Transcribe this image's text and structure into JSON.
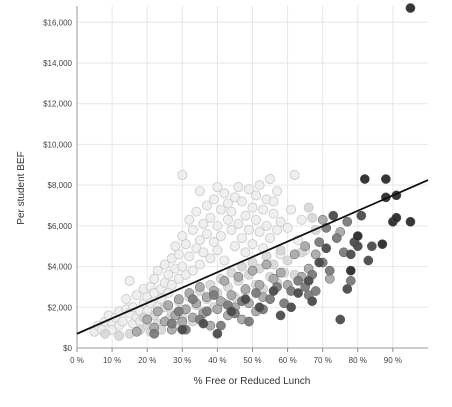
{
  "chart_data": {
    "type": "scatter",
    "xlabel": "% Free or Reduced Lunch",
    "ylabel": "Per student BEF",
    "xlim": [
      0,
      100
    ],
    "ylim": [
      0,
      16800
    ],
    "x_ticks": [
      {
        "value": 0,
        "label": "0 %"
      },
      {
        "value": 10,
        "label": "10 %"
      },
      {
        "value": 20,
        "label": "20 %"
      },
      {
        "value": 30,
        "label": "30 %"
      },
      {
        "value": 40,
        "label": "40 %"
      },
      {
        "value": 50,
        "label": "50 %"
      },
      {
        "value": 60,
        "label": "60 %"
      },
      {
        "value": 70,
        "label": "70 %"
      },
      {
        "value": 80,
        "label": "80 %"
      },
      {
        "value": 90,
        "label": "90 %"
      }
    ],
    "y_ticks": [
      {
        "value": 0,
        "label": "$0"
      },
      {
        "value": 2000,
        "label": "$2,000"
      },
      {
        "value": 4000,
        "label": "$4,000"
      },
      {
        "value": 6000,
        "label": "$6,000"
      },
      {
        "value": 8000,
        "label": "$8,000"
      },
      {
        "value": 10000,
        "label": "$10,000"
      },
      {
        "value": 12000,
        "label": "$12,000"
      },
      {
        "value": 14000,
        "label": "$14,000"
      },
      {
        "value": 16000,
        "label": "$16,000"
      }
    ],
    "grid": true,
    "legend": "none",
    "trendline": {
      "x": [
        0,
        100
      ],
      "y": [
        700,
        8250
      ],
      "color": "#111111"
    },
    "color_scale": [
      "#ececec",
      "#d4d4d4",
      "#a9a9a9",
      "#7a7a7a",
      "#4b4b4b",
      "#2b2b2b"
    ],
    "points": [
      [
        5,
        800,
        0
      ],
      [
        6,
        1100,
        0
      ],
      [
        7,
        900,
        0
      ],
      [
        8,
        1300,
        0
      ],
      [
        9,
        1600,
        0
      ],
      [
        10,
        1200,
        0
      ],
      [
        10,
        900,
        0
      ],
      [
        11,
        1500,
        0
      ],
      [
        12,
        1800,
        0
      ],
      [
        12,
        1100,
        0
      ],
      [
        13,
        1300,
        0
      ],
      [
        14,
        1900,
        0
      ],
      [
        14,
        2400,
        0
      ],
      [
        15,
        3300,
        0
      ],
      [
        15,
        1700,
        0
      ],
      [
        16,
        1200,
        0
      ],
      [
        16,
        2000,
        0
      ],
      [
        17,
        1500,
        0
      ],
      [
        17,
        2600,
        0
      ],
      [
        18,
        1800,
        0
      ],
      [
        18,
        1300,
        0
      ],
      [
        19,
        2200,
        0
      ],
      [
        19,
        2900,
        0
      ],
      [
        20,
        2500,
        0
      ],
      [
        20,
        1800,
        0
      ],
      [
        21,
        3000,
        0
      ],
      [
        21,
        2200,
        0
      ],
      [
        22,
        2700,
        0
      ],
      [
        22,
        3400,
        0
      ],
      [
        23,
        2000,
        0
      ],
      [
        23,
        3800,
        0
      ],
      [
        24,
        2900,
        0
      ],
      [
        24,
        2400,
        0
      ],
      [
        25,
        3200,
        0
      ],
      [
        25,
        4100,
        0
      ],
      [
        26,
        3600,
        0
      ],
      [
        26,
        2700,
        0
      ],
      [
        27,
        4400,
        0
      ],
      [
        27,
        3100,
        0
      ],
      [
        28,
        3900,
        0
      ],
      [
        28,
        5000,
        0
      ],
      [
        29,
        3400,
        0
      ],
      [
        29,
        4600,
        0
      ],
      [
        30,
        8500,
        0
      ],
      [
        30,
        5500,
        0
      ],
      [
        30,
        4000,
        0
      ],
      [
        31,
        3600,
        0
      ],
      [
        31,
        5100,
        0
      ],
      [
        32,
        6300,
        0
      ],
      [
        32,
        4500,
        0
      ],
      [
        33,
        5800,
        0
      ],
      [
        33,
        3800,
        0
      ],
      [
        34,
        4900,
        0
      ],
      [
        34,
        6700,
        0
      ],
      [
        35,
        5300,
        0
      ],
      [
        35,
        4100,
        0
      ],
      [
        35,
        7700,
        0
      ],
      [
        36,
        6100,
        0
      ],
      [
        36,
        4700,
        0
      ],
      [
        37,
        5600,
        0
      ],
      [
        37,
        7000,
        0
      ],
      [
        38,
        6400,
        0
      ],
      [
        38,
        4400,
        0
      ],
      [
        39,
        7300,
        0
      ],
      [
        39,
        5200,
        0
      ],
      [
        40,
        6000,
        0
      ],
      [
        40,
        7900,
        0
      ],
      [
        40,
        4800,
        0
      ],
      [
        41,
        6800,
        0
      ],
      [
        41,
        5500,
        0
      ],
      [
        42,
        7600,
        0
      ],
      [
        42,
        4300,
        0
      ],
      [
        43,
        6300,
        0
      ],
      [
        43,
        7100,
        0
      ],
      [
        44,
        5800,
        0
      ],
      [
        44,
        6700,
        0
      ],
      [
        45,
        7400,
        0
      ],
      [
        45,
        5000,
        0
      ],
      [
        46,
        7900,
        0
      ],
      [
        46,
        6100,
        0
      ],
      [
        47,
        5400,
        0
      ],
      [
        47,
        7200,
        0
      ],
      [
        48,
        6500,
        0
      ],
      [
        48,
        4700,
        0
      ],
      [
        49,
        7800,
        0
      ],
      [
        49,
        5800,
        0
      ],
      [
        50,
        6900,
        0
      ],
      [
        50,
        5100,
        0
      ],
      [
        51,
        7500,
        0
      ],
      [
        51,
        6300,
        0
      ],
      [
        52,
        5700,
        0
      ],
      [
        52,
        8000,
        0
      ],
      [
        53,
        6800,
        0
      ],
      [
        53,
        4900,
        0
      ],
      [
        54,
        7300,
        0
      ],
      [
        54,
        6000,
        0
      ],
      [
        55,
        5400,
        0
      ],
      [
        55,
        8300,
        0
      ],
      [
        56,
        6600,
        0
      ],
      [
        56,
        7200,
        0
      ],
      [
        57,
        5800,
        0
      ],
      [
        57,
        7700,
        0
      ],
      [
        58,
        6200,
        0
      ],
      [
        58,
        4600,
        0
      ],
      [
        60,
        5900,
        0
      ],
      [
        61,
        6800,
        0
      ],
      [
        62,
        8500,
        0
      ],
      [
        63,
        5300,
        0
      ],
      [
        64,
        6300,
        0
      ],
      [
        65,
        4800,
        0
      ],
      [
        8,
        700,
        1
      ],
      [
        12,
        600,
        1
      ],
      [
        15,
        700,
        1
      ],
      [
        18,
        900,
        1
      ],
      [
        19,
        1500,
        1
      ],
      [
        20,
        1100,
        1
      ],
      [
        21,
        800,
        1
      ],
      [
        22,
        1600,
        1
      ],
      [
        23,
        1200,
        1
      ],
      [
        24,
        900,
        1
      ],
      [
        25,
        2000,
        1
      ],
      [
        26,
        1400,
        1
      ],
      [
        27,
        1700,
        1
      ],
      [
        28,
        1100,
        1
      ],
      [
        29,
        2300,
        1
      ],
      [
        30,
        1500,
        1
      ],
      [
        31,
        1900,
        1
      ],
      [
        32,
        2500,
        1
      ],
      [
        33,
        1300,
        1
      ],
      [
        34,
        2100,
        1
      ],
      [
        35,
        2800,
        1
      ],
      [
        36,
        1800,
        1
      ],
      [
        37,
        2400,
        1
      ],
      [
        38,
        3100,
        1
      ],
      [
        39,
        2000,
        1
      ],
      [
        40,
        2700,
        1
      ],
      [
        41,
        3400,
        1
      ],
      [
        42,
        2200,
        1
      ],
      [
        43,
        3000,
        1
      ],
      [
        44,
        3700,
        1
      ],
      [
        45,
        2500,
        1
      ],
      [
        46,
        3300,
        1
      ],
      [
        47,
        4000,
        1
      ],
      [
        48,
        2800,
        1
      ],
      [
        49,
        3600,
        1
      ],
      [
        50,
        4200,
        1
      ],
      [
        51,
        3100,
        1
      ],
      [
        52,
        3900,
        1
      ],
      [
        53,
        2900,
        1
      ],
      [
        54,
        4500,
        1
      ],
      [
        55,
        3500,
        1
      ],
      [
        56,
        4100,
        1
      ],
      [
        57,
        3200,
        1
      ],
      [
        58,
        4800,
        1
      ],
      [
        59,
        3700,
        1
      ],
      [
        60,
        4300,
        1
      ],
      [
        62,
        3600,
        1
      ],
      [
        64,
        4700,
        1
      ],
      [
        66,
        6900,
        1
      ],
      [
        67,
        6400,
        1
      ],
      [
        68,
        5800,
        1
      ],
      [
        17,
        800,
        2
      ],
      [
        20,
        1400,
        2
      ],
      [
        22,
        1000,
        2
      ],
      [
        23,
        1800,
        2
      ],
      [
        25,
        1300,
        2
      ],
      [
        26,
        2100,
        2
      ],
      [
        27,
        900,
        2
      ],
      [
        28,
        1600,
        2
      ],
      [
        29,
        2400,
        2
      ],
      [
        30,
        1300,
        2
      ],
      [
        31,
        1900,
        2
      ],
      [
        32,
        2700,
        2
      ],
      [
        33,
        1500,
        2
      ],
      [
        34,
        2200,
        2
      ],
      [
        35,
        3000,
        2
      ],
      [
        36,
        1700,
        2
      ],
      [
        37,
        2500,
        2
      ],
      [
        38,
        1100,
        2
      ],
      [
        39,
        2800,
        2
      ],
      [
        40,
        1900,
        2
      ],
      [
        41,
        2300,
        2
      ],
      [
        42,
        3300,
        2
      ],
      [
        43,
        1600,
        2
      ],
      [
        44,
        2600,
        2
      ],
      [
        45,
        2000,
        2
      ],
      [
        46,
        3500,
        2
      ],
      [
        47,
        1400,
        2
      ],
      [
        48,
        2900,
        2
      ],
      [
        49,
        2200,
        2
      ],
      [
        50,
        3800,
        2
      ],
      [
        51,
        1800,
        2
      ],
      [
        52,
        3100,
        2
      ],
      [
        53,
        2500,
        2
      ],
      [
        54,
        4100,
        2
      ],
      [
        56,
        3400,
        2
      ],
      [
        58,
        3700,
        2
      ],
      [
        60,
        3100,
        2
      ],
      [
        62,
        4600,
        2
      ],
      [
        64,
        3500,
        2
      ],
      [
        65,
        5000,
        2
      ],
      [
        66,
        3900,
        2
      ],
      [
        68,
        4600,
        2
      ],
      [
        70,
        6300,
        2
      ],
      [
        72,
        3400,
        2
      ],
      [
        75,
        5700,
        2
      ],
      [
        22,
        700,
        3
      ],
      [
        27,
        1200,
        3
      ],
      [
        29,
        1800,
        3
      ],
      [
        31,
        900,
        3
      ],
      [
        33,
        2400,
        3
      ],
      [
        35,
        1400,
        3
      ],
      [
        37,
        1800,
        3
      ],
      [
        39,
        2600,
        3
      ],
      [
        41,
        1100,
        3
      ],
      [
        43,
        2100,
        3
      ],
      [
        45,
        1700,
        3
      ],
      [
        47,
        2300,
        3
      ],
      [
        49,
        1300,
        3
      ],
      [
        51,
        2700,
        3
      ],
      [
        53,
        1900,
        3
      ],
      [
        55,
        2400,
        3
      ],
      [
        57,
        3000,
        3
      ],
      [
        59,
        2200,
        3
      ],
      [
        61,
        2800,
        3
      ],
      [
        63,
        3300,
        3
      ],
      [
        65,
        3000,
        3
      ],
      [
        66,
        2600,
        3
      ],
      [
        67,
        3600,
        3
      ],
      [
        68,
        2800,
        3
      ],
      [
        69,
        5200,
        3
      ],
      [
        70,
        4200,
        3
      ],
      [
        71,
        5900,
        3
      ],
      [
        72,
        3800,
        3
      ],
      [
        74,
        5400,
        3
      ],
      [
        76,
        4700,
        3
      ],
      [
        77,
        6200,
        3
      ],
      [
        78,
        3300,
        3
      ],
      [
        30,
        900,
        4
      ],
      [
        36,
        1200,
        4
      ],
      [
        40,
        700,
        4
      ],
      [
        44,
        1800,
        4
      ],
      [
        48,
        2400,
        4
      ],
      [
        52,
        2000,
        4
      ],
      [
        56,
        2800,
        4
      ],
      [
        58,
        1600,
        4
      ],
      [
        61,
        2000,
        4
      ],
      [
        63,
        2700,
        4
      ],
      [
        66,
        3300,
        4
      ],
      [
        67,
        2300,
        4
      ],
      [
        69,
        4200,
        4
      ],
      [
        71,
        4900,
        4
      ],
      [
        73,
        6500,
        4
      ],
      [
        75,
        1400,
        4
      ],
      [
        77,
        2900,
        4
      ],
      [
        78,
        4600,
        4
      ],
      [
        79,
        5200,
        4
      ],
      [
        80,
        5000,
        4
      ],
      [
        81,
        6500,
        4
      ],
      [
        83,
        4300,
        4
      ],
      [
        84,
        5000,
        4
      ],
      [
        78,
        3800,
        5
      ],
      [
        80,
        5500,
        5
      ],
      [
        82,
        8300,
        5
      ],
      [
        87,
        5100,
        5
      ],
      [
        88,
        8300,
        5
      ],
      [
        88,
        7400,
        5
      ],
      [
        90,
        6200,
        5
      ],
      [
        91,
        6400,
        5
      ],
      [
        91,
        7500,
        5
      ],
      [
        95,
        6200,
        5
      ],
      [
        95,
        16700,
        5
      ]
    ]
  }
}
